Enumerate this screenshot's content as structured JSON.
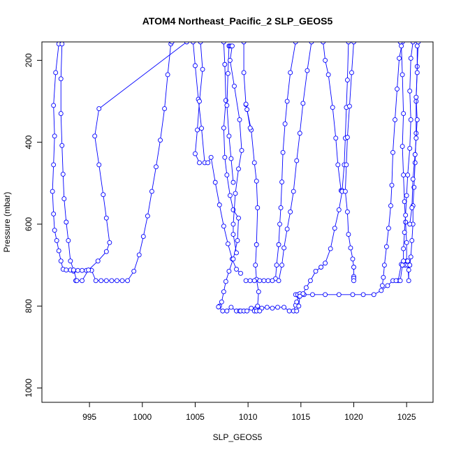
{
  "chart_data": {
    "type": "line",
    "title": "ATOM4 Northeast_Pacific_2 SLP_GEOS5",
    "xlabel": "SLP_GEOS5",
    "ylabel": "Pressure (mbar)",
    "xlim": [
      990.5,
      1027.5
    ],
    "ylim": [
      1035,
      155
    ],
    "x_ticks": [
      995,
      1000,
      1005,
      1010,
      1015,
      1020,
      1025
    ],
    "y_ticks": [
      200,
      400,
      600,
      800,
      1000
    ],
    "marker": "open-circle",
    "color": "#0000ff",
    "series": [
      {
        "points": [
          [
            992.3,
            155
          ],
          [
            992.1,
            160
          ],
          [
            991.8,
            230
          ],
          [
            991.6,
            310
          ],
          [
            991.7,
            385
          ],
          [
            991.6,
            455
          ],
          [
            991.5,
            520
          ],
          [
            991.6,
            575
          ],
          [
            991.7,
            615
          ],
          [
            991.9,
            640
          ],
          [
            992.1,
            665
          ],
          [
            992.3,
            690
          ],
          [
            992.5,
            710
          ],
          [
            992.8,
            712
          ],
          [
            993.2,
            712
          ],
          [
            993.5,
            715
          ],
          [
            993.9,
            713
          ],
          [
            994.3,
            713
          ],
          [
            994.7,
            713
          ],
          [
            995.2,
            713
          ],
          [
            995.6,
            738
          ],
          [
            996.1,
            738
          ],
          [
            996.6,
            738
          ],
          [
            997.1,
            738
          ],
          [
            997.6,
            738
          ],
          [
            998.1,
            738
          ],
          [
            998.6,
            738
          ],
          [
            999.2,
            715
          ],
          [
            999.7,
            675
          ],
          [
            1000.1,
            630
          ],
          [
            1000.5,
            580
          ],
          [
            1000.9,
            520
          ],
          [
            1001.3,
            460
          ],
          [
            1001.7,
            395
          ],
          [
            1002.1,
            318
          ],
          [
            1002.4,
            235
          ],
          [
            1002.7,
            160
          ],
          [
            1002.8,
            155
          ]
        ]
      },
      {
        "points": [
          [
            1004.2,
            155
          ],
          [
            995.9,
            318
          ],
          [
            995.5,
            385
          ],
          [
            995.9,
            455
          ],
          [
            996.3,
            528
          ],
          [
            996.6,
            585
          ],
          [
            996.9,
            645
          ],
          [
            996.6,
            667
          ],
          [
            995.8,
            690
          ],
          [
            994.9,
            712
          ],
          [
            994.3,
            738
          ],
          [
            993.7,
            738
          ]
        ]
      },
      {
        "points": [
          [
            992.4,
            160
          ],
          [
            992.3,
            245
          ],
          [
            992.3,
            330
          ],
          [
            992.4,
            408
          ],
          [
            992.5,
            478
          ],
          [
            992.6,
            538
          ],
          [
            992.8,
            595
          ],
          [
            993.0,
            640
          ],
          [
            993.2,
            690
          ],
          [
            993.5,
            712
          ],
          [
            993.8,
            738
          ]
        ]
      },
      {
        "points": [
          [
            1004.8,
            155
          ],
          [
            1005.0,
            213
          ],
          [
            1005.3,
            295
          ],
          [
            1005.6,
            366
          ],
          [
            1005.9,
            450
          ],
          [
            1006.2,
            450
          ],
          [
            1006.5,
            437
          ],
          [
            1006.9,
            498
          ],
          [
            1007.3,
            553
          ],
          [
            1007.7,
            605
          ],
          [
            1008.1,
            648
          ],
          [
            1008.5,
            685
          ],
          [
            1008.9,
            710
          ],
          [
            1009.3,
            720
          ]
        ]
      },
      {
        "points": [
          [
            1005.5,
            155
          ],
          [
            1005.7,
            222
          ],
          [
            1005.4,
            300
          ],
          [
            1005.2,
            370
          ],
          [
            1005.0,
            428
          ],
          [
            1005.4,
            450
          ]
        ]
      },
      {
        "points": [
          [
            1007.7,
            155
          ],
          [
            1007.8,
            210
          ],
          [
            1007.9,
            298
          ],
          [
            1007.7,
            365
          ],
          [
            1007.8,
            437
          ],
          [
            1008.0,
            480
          ],
          [
            1008.3,
            530
          ],
          [
            1008.6,
            565
          ],
          [
            1009.1,
            585
          ],
          [
            1009.0,
            640
          ],
          [
            1008.6,
            685
          ],
          [
            1008.2,
            715
          ],
          [
            1007.9,
            740
          ],
          [
            1007.7,
            765
          ],
          [
            1007.5,
            790
          ],
          [
            1007.3,
            800
          ],
          [
            1007.2,
            802
          ],
          [
            1007.6,
            812
          ],
          [
            1008.0,
            812
          ],
          [
            1008.4,
            803
          ],
          [
            1008.9,
            812
          ],
          [
            1009.2,
            812
          ],
          [
            1009.3,
            812
          ],
          [
            1009.6,
            812
          ],
          [
            1009.9,
            812
          ],
          [
            1010.3,
            805
          ],
          [
            1010.8,
            805
          ],
          [
            1011.3,
            805
          ],
          [
            1011.8,
            803
          ],
          [
            1012.3,
            805
          ],
          [
            1012.8,
            803
          ],
          [
            1013.4,
            803
          ],
          [
            1013.9,
            812
          ],
          [
            1014.3,
            812
          ],
          [
            1014.5,
            798
          ],
          [
            1014.6,
            790
          ],
          [
            1014.8,
            776
          ],
          [
            1014.5,
            772
          ],
          [
            1014.7,
            772
          ],
          [
            1014.9,
            770
          ],
          [
            1015.3,
            772
          ],
          [
            1016.1,
            772
          ],
          [
            1017.3,
            772
          ],
          [
            1018.6,
            772
          ],
          [
            1019.9,
            772
          ],
          [
            1020.9,
            772
          ],
          [
            1021.9,
            772
          ],
          [
            1022.6,
            762
          ],
          [
            1023.2,
            750
          ],
          [
            1023.7,
            738
          ],
          [
            1024.2,
            738
          ],
          [
            1024.5,
            698
          ],
          [
            1024.7,
            700
          ],
          [
            1024.9,
            700
          ],
          [
            1025.1,
            690
          ]
        ]
      },
      {
        "points": [
          [
            1008.2,
            165
          ],
          [
            1008.1,
            232
          ],
          [
            1008.0,
            310
          ],
          [
            1008.2,
            385
          ],
          [
            1008.4,
            440
          ],
          [
            1008.6,
            498
          ]
        ]
      },
      {
        "points": [
          [
            1008.3,
            165
          ],
          [
            1008.4,
            165
          ],
          [
            1008.5,
            165
          ],
          [
            1008.3,
            200
          ],
          [
            1008.7,
            263
          ],
          [
            1009.2,
            345
          ],
          [
            1009.4,
            420
          ],
          [
            1009.1,
            465
          ],
          [
            1008.8,
            525
          ],
          [
            1008.6,
            600
          ],
          [
            1008.6,
            625
          ],
          [
            1008.9,
            670
          ]
        ]
      },
      {
        "points": [
          [
            1009.6,
            155
          ],
          [
            1009.6,
            230
          ],
          [
            1009.8,
            308
          ],
          [
            1010.3,
            370
          ],
          [
            1010.6,
            450
          ],
          [
            1010.8,
            495
          ],
          [
            1010.9,
            560
          ],
          [
            1010.8,
            650
          ],
          [
            1010.7,
            700
          ],
          [
            1010.8,
            735
          ],
          [
            1011.0,
            765
          ],
          [
            1010.9,
            800
          ],
          [
            1010.7,
            808
          ],
          [
            1010.6,
            812
          ],
          [
            1010.8,
            812
          ],
          [
            1011.1,
            812
          ]
        ]
      },
      {
        "points": [
          [
            1009.8,
            307
          ],
          [
            1009.9,
            320
          ],
          [
            1010.2,
            365
          ]
        ]
      },
      {
        "points": [
          [
            1014.5,
            155
          ],
          [
            1014.0,
            230
          ],
          [
            1013.7,
            300
          ],
          [
            1013.5,
            355
          ],
          [
            1013.3,
            425
          ],
          [
            1013.2,
            497
          ],
          [
            1013.1,
            560
          ],
          [
            1013.0,
            600
          ],
          [
            1012.9,
            650
          ],
          [
            1012.7,
            700
          ],
          [
            1012.6,
            733
          ],
          [
            1012.3,
            738
          ],
          [
            1011.9,
            738
          ],
          [
            1011.5,
            738
          ],
          [
            1011.1,
            738
          ],
          [
            1010.6,
            738
          ],
          [
            1010.2,
            738
          ],
          [
            1009.8,
            738
          ]
        ]
      },
      {
        "points": [
          [
            1016.0,
            155
          ],
          [
            1015.6,
            225
          ],
          [
            1015.2,
            305
          ],
          [
            1014.9,
            378
          ],
          [
            1014.6,
            445
          ],
          [
            1014.3,
            520
          ],
          [
            1014.0,
            570
          ],
          [
            1013.7,
            612
          ],
          [
            1013.4,
            658
          ],
          [
            1013.2,
            700
          ],
          [
            1012.9,
            738
          ]
        ]
      },
      {
        "points": [
          [
            1017.1,
            155
          ],
          [
            1017.3,
            200
          ],
          [
            1017.6,
            235
          ],
          [
            1018.0,
            315
          ],
          [
            1018.3,
            390
          ],
          [
            1018.5,
            455
          ],
          [
            1018.8,
            518
          ],
          [
            1018.9,
            518
          ],
          [
            1019.1,
            455
          ],
          [
            1019.2,
            390
          ],
          [
            1019.3,
            315
          ],
          [
            1019.4,
            248
          ],
          [
            1019.5,
            155
          ]
        ]
      },
      {
        "points": [
          [
            1018.9,
            520
          ],
          [
            1018.6,
            565
          ],
          [
            1018.2,
            610
          ],
          [
            1017.8,
            660
          ],
          [
            1017.3,
            695
          ],
          [
            1016.9,
            705
          ],
          [
            1016.4,
            715
          ],
          [
            1015.9,
            738
          ],
          [
            1015.5,
            755
          ],
          [
            1015.2,
            770
          ],
          [
            1014.9,
            776
          ],
          [
            1014.8,
            800
          ],
          [
            1014.6,
            812
          ]
        ]
      },
      {
        "points": [
          [
            1020.0,
            155
          ],
          [
            1019.8,
            230
          ],
          [
            1019.6,
            312
          ],
          [
            1019.4,
            388
          ],
          [
            1019.3,
            455
          ],
          [
            1019.2,
            520
          ],
          [
            1019.4,
            570
          ],
          [
            1019.5,
            625
          ],
          [
            1019.7,
            658
          ],
          [
            1019.9,
            685
          ],
          [
            1020.0,
            705
          ],
          [
            1020.0,
            728
          ],
          [
            1020.0,
            732
          ],
          [
            1020.0,
            738
          ]
        ]
      },
      {
        "points": [
          [
            1024.6,
            155
          ],
          [
            1024.3,
            195
          ],
          [
            1024.1,
            270
          ],
          [
            1023.9,
            345
          ],
          [
            1023.7,
            425
          ],
          [
            1023.6,
            505
          ],
          [
            1023.5,
            555
          ],
          [
            1023.3,
            610
          ],
          [
            1023.1,
            655
          ],
          [
            1022.9,
            700
          ],
          [
            1022.8,
            730
          ],
          [
            1022.7,
            750
          ]
        ]
      },
      {
        "points": [
          [
            1024.4,
            155
          ],
          [
            1024.5,
            165
          ],
          [
            1024.6,
            235
          ],
          [
            1024.7,
            330
          ],
          [
            1024.6,
            410
          ],
          [
            1024.7,
            480
          ],
          [
            1024.8,
            545
          ],
          [
            1024.9,
            595
          ],
          [
            1025.0,
            645
          ],
          [
            1025.0,
            690
          ],
          [
            1025.1,
            700
          ],
          [
            1025.3,
            700
          ]
        ]
      },
      {
        "points": [
          [
            1025.6,
            155
          ],
          [
            1025.4,
            195
          ],
          [
            1025.3,
            275
          ],
          [
            1025.4,
            345
          ],
          [
            1025.3,
            415
          ],
          [
            1025.1,
            480
          ],
          [
            1025.0,
            530
          ],
          [
            1024.9,
            578
          ],
          [
            1024.8,
            620
          ],
          [
            1024.7,
            660
          ],
          [
            1024.7,
            690
          ],
          [
            1024.6,
            700
          ],
          [
            1024.4,
            738
          ],
          [
            1024.0,
            738
          ]
        ]
      },
      {
        "points": [
          [
            1026.1,
            155
          ],
          [
            1026.0,
            215
          ],
          [
            1025.9,
            300
          ],
          [
            1025.9,
            378
          ],
          [
            1025.8,
            450
          ],
          [
            1025.7,
            510
          ],
          [
            1025.6,
            555
          ],
          [
            1025.6,
            600
          ],
          [
            1025.5,
            640
          ],
          [
            1025.4,
            680
          ],
          [
            1025.3,
            700
          ],
          [
            1025.2,
            712
          ],
          [
            1025.2,
            738
          ],
          [
            1025.1,
            690
          ]
        ]
      },
      {
        "points": [
          [
            1026.0,
            165
          ],
          [
            1026.0,
            230
          ],
          [
            1025.9,
            290
          ],
          [
            1026.0,
            345
          ],
          [
            1025.9,
            390
          ],
          [
            1025.8,
            430
          ],
          [
            1025.6,
            490
          ],
          [
            1025.5,
            560
          ],
          [
            1025.3,
            600
          ]
        ]
      }
    ]
  }
}
